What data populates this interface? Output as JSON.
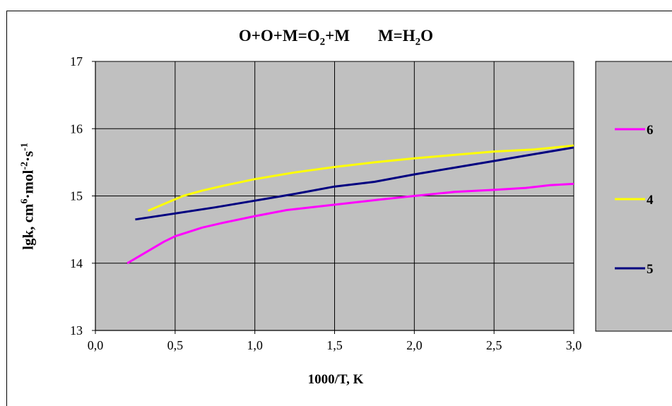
{
  "chart_data": {
    "type": "line",
    "title_parts": [
      "O+O+M=O",
      "2",
      "+M",
      "M=H",
      "2",
      "O"
    ],
    "xlabel": "1000/T, K",
    "ylabel_parts": [
      "lgk,   cm",
      "6",
      "·mol",
      "-2",
      "·s",
      "-1"
    ],
    "xlim": [
      0.0,
      3.0
    ],
    "ylim": [
      13,
      17
    ],
    "x_ticks": [
      "0,0",
      "0,5",
      "1,0",
      "1,5",
      "2,0",
      "2,5",
      "3,0"
    ],
    "y_ticks": [
      "13",
      "14",
      "15",
      "16",
      "17"
    ],
    "grid": true,
    "legend_position": "right",
    "plot_background": "#c0c0c0",
    "series": [
      {
        "name": "6",
        "color": "#ff00ff",
        "x": [
          0.2,
          0.33,
          0.43,
          0.5,
          0.67,
          0.8,
          1.0,
          1.2,
          1.5,
          1.8,
          2.0,
          2.25,
          2.5,
          2.7,
          2.85,
          3.0
        ],
        "y": [
          14.0,
          14.18,
          14.32,
          14.4,
          14.53,
          14.6,
          14.7,
          14.79,
          14.87,
          14.95,
          15.0,
          15.06,
          15.09,
          15.12,
          15.16,
          15.18
        ]
      },
      {
        "name": "4",
        "color": "#ffff00",
        "x": [
          0.33,
          0.45,
          0.55,
          0.67,
          0.8,
          1.0,
          1.25,
          1.5,
          1.75,
          2.0,
          2.25,
          2.5,
          2.75,
          3.0
        ],
        "y": [
          14.78,
          14.9,
          15.0,
          15.08,
          15.15,
          15.25,
          15.35,
          15.43,
          15.5,
          15.56,
          15.61,
          15.66,
          15.69,
          15.75
        ]
      },
      {
        "name": "5",
        "color": "#000080",
        "x": [
          0.25,
          0.5,
          0.75,
          1.0,
          1.25,
          1.5,
          1.75,
          2.0,
          2.25,
          2.5,
          2.75,
          3.0
        ],
        "y": [
          14.65,
          14.74,
          14.83,
          14.93,
          15.03,
          15.14,
          15.21,
          15.32,
          15.42,
          15.52,
          15.62,
          15.72
        ]
      }
    ]
  }
}
